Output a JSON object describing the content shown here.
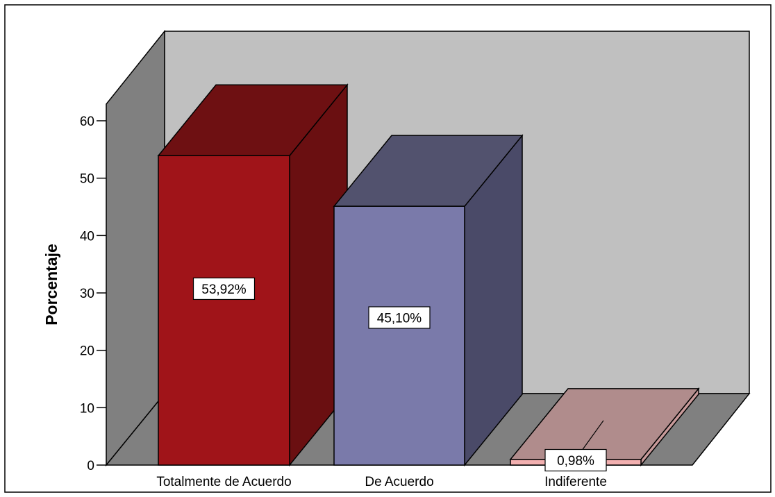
{
  "chart_data": {
    "type": "bar",
    "title": "",
    "xlabel": "",
    "ylabel": "Porcentaje",
    "ylim": [
      0,
      60
    ],
    "yticks": [
      0,
      10,
      20,
      30,
      40,
      50,
      60
    ],
    "categories": [
      "Totalmente de Acuerdo",
      "De Acuerdo",
      "Indiferente"
    ],
    "values": [
      53.92,
      45.1,
      0.98
    ],
    "data_labels": [
      "53,92%",
      "45,10%",
      "0,98%"
    ],
    "style": "3d",
    "grid": false,
    "legend": "none",
    "colors": {
      "bars": [
        {
          "front": "#a01419",
          "top": "#6e1012",
          "side": "#6a0f11"
        },
        {
          "front": "#7a7aaa",
          "top": "#52526e",
          "side": "#4a4a68"
        },
        {
          "front": "#f2b0b0",
          "top": "#b08c8c",
          "side": "#c89a9a"
        }
      ],
      "back_wall": "#c0c0c0",
      "side_wall": "#808080",
      "floor": "#808080",
      "frame": "#000000"
    }
  }
}
